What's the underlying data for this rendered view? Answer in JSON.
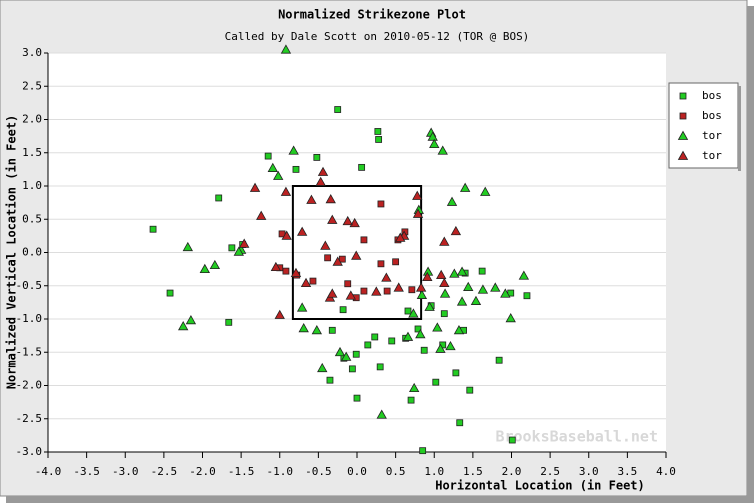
{
  "chart_data": {
    "type": "scatter",
    "title": "Normalized Strikezone Plot",
    "subtitle": "Called by Dale Scott on 2010-05-12 (TOR @ BOS)",
    "xlabel": "Horizontal Location (in Feet)",
    "ylabel": "Normalized Vertical Location (in Feet)",
    "watermark": "BrooksBaseball.net",
    "xlim": [
      -4,
      4
    ],
    "ylim": [
      -3,
      3
    ],
    "xticks": [
      {
        "value": -4,
        "label": "-4.0"
      },
      -3.5,
      {
        "value": -3,
        "label": "-3.0"
      },
      -2.5,
      {
        "value": -2,
        "label": "-2.0"
      },
      -1.5,
      {
        "value": -1,
        "label": "-1.0"
      },
      -0.5,
      {
        "value": 0,
        "label": "0.0"
      },
      0.5,
      {
        "value": 1,
        "label": "1.0"
      },
      1.5,
      {
        "value": 2,
        "label": "2.0"
      },
      2.5,
      {
        "value": 3,
        "label": "3.0"
      },
      3.5,
      {
        "value": 4,
        "label": "4.0"
      }
    ],
    "yticks": [
      {
        "value": 3,
        "label": "3.0"
      },
      2.5,
      {
        "value": 2,
        "label": "2.0"
      },
      1.5,
      {
        "value": 1,
        "label": "1.0"
      },
      0.5,
      {
        "value": 0,
        "label": "0.0"
      },
      -0.5,
      {
        "value": -1,
        "label": "-1.0"
      },
      -1.5,
      {
        "value": -2,
        "label": "-2.0"
      },
      -2.5,
      {
        "value": -3,
        "label": "-3.0"
      }
    ],
    "grid": "y",
    "legend": "right",
    "strike_zone": {
      "left": -0.83,
      "right": 0.83,
      "bottom": -1,
      "top": 1
    },
    "series": [
      {
        "name": "bos",
        "color": "#22cc22",
        "marker": "square",
        "x": [
          -0.25,
          0.27,
          0.28,
          -1.15,
          -0.52,
          0.06,
          -0.79,
          -1.79,
          -2.64,
          -1.62,
          -1.48,
          1.62,
          1.4,
          -2.42,
          -1.66,
          2.2,
          1.99,
          0.96,
          0.66,
          1.13,
          -0.18,
          0.79,
          1.38,
          -0.32,
          0.23,
          0.45,
          0.14,
          0.63,
          1.11,
          -0.01,
          -0.17,
          0.87,
          1.84,
          -0.35,
          -0.06,
          0.3,
          1.28,
          1.02,
          1.46,
          0.0,
          0.7,
          1.33,
          2.01,
          0.85
        ],
        "values": [
          2.15,
          1.82,
          1.7,
          1.45,
          1.43,
          1.28,
          1.25,
          0.82,
          0.35,
          0.07,
          0.12,
          -0.28,
          -0.31,
          -0.61,
          -1.05,
          -0.65,
          -0.61,
          -0.8,
          -0.88,
          -0.92,
          -0.86,
          -1.15,
          -1.17,
          -1.17,
          -1.27,
          -1.33,
          -1.39,
          -1.29,
          -1.39,
          -1.53,
          -1.59,
          -1.47,
          -1.62,
          -1.92,
          -1.75,
          -1.72,
          -1.81,
          -1.95,
          -2.07,
          -2.19,
          -2.22,
          -2.56,
          -2.82,
          -2.98
        ]
      },
      {
        "name": "bos",
        "color": "#bb2222",
        "marker": "square",
        "x": [
          0.31,
          0.53,
          0.62,
          0.09,
          -0.97,
          -0.38,
          -0.19,
          0.5,
          0.31,
          -0.92,
          -0.78,
          -1.0,
          -0.12,
          0.39,
          0.09,
          -0.01,
          0.71,
          -0.57
        ],
        "values": [
          0.73,
          0.19,
          0.31,
          0.19,
          0.28,
          -0.08,
          -0.1,
          -0.14,
          -0.17,
          -0.28,
          -0.34,
          -0.23,
          -0.47,
          -0.58,
          -0.58,
          -0.68,
          -0.56,
          -0.43
        ]
      },
      {
        "name": "tor",
        "color": "#22cc22",
        "marker": "triangle",
        "x": [
          -0.92,
          0.96,
          0.98,
          1.0,
          1.11,
          -0.82,
          -1.09,
          -1.02,
          1.4,
          1.66,
          1.23,
          -2.19,
          -1.84,
          -1.97,
          -1.5,
          -1.53,
          0.8,
          0.92,
          1.26,
          1.36,
          2.16,
          1.44,
          1.63,
          1.79,
          1.92,
          1.14,
          0.84,
          1.36,
          1.54,
          0.94,
          -0.71,
          0.73,
          0.66,
          -2.15,
          -2.25,
          -0.69,
          -0.52,
          0.82,
          1.32,
          1.99,
          1.04,
          1.21,
          1.08,
          -0.22,
          -0.14,
          -0.45,
          0.74,
          0.32
        ],
        "values": [
          3.05,
          1.8,
          1.74,
          1.63,
          1.53,
          1.53,
          1.27,
          1.15,
          0.97,
          0.91,
          0.76,
          0.08,
          -0.19,
          -0.25,
          0.04,
          0.01,
          0.64,
          -0.29,
          -0.32,
          -0.29,
          -0.35,
          -0.52,
          -0.56,
          -0.53,
          -0.62,
          -0.62,
          -0.64,
          -0.74,
          -0.73,
          -0.82,
          -0.83,
          -0.92,
          -1.27,
          -1.02,
          -1.11,
          -1.14,
          -1.17,
          -1.23,
          -1.17,
          -0.99,
          -1.13,
          -1.41,
          -1.45,
          -1.5,
          -1.57,
          -1.74,
          -2.04,
          -2.44
        ]
      },
      {
        "name": "tor",
        "color": "#bb2222",
        "marker": "triangle",
        "x": [
          -0.44,
          -0.47,
          -1.32,
          -0.92,
          -0.34,
          -0.59,
          0.78,
          0.79,
          -1.24,
          -0.32,
          -0.03,
          -0.12,
          1.28,
          -0.71,
          -0.91,
          -1.46,
          0.61,
          0.56,
          1.13,
          -0.41,
          -1.05,
          -0.79,
          -0.01,
          -0.25,
          0.38,
          0.91,
          1.09,
          1.13,
          -0.66,
          0.25,
          -0.08,
          -0.35,
          -0.32,
          0.54,
          0.83,
          -1.0
        ],
        "values": [
          1.21,
          1.06,
          0.97,
          0.91,
          0.8,
          0.79,
          0.85,
          0.58,
          0.55,
          0.49,
          0.44,
          0.47,
          0.32,
          0.31,
          0.25,
          0.13,
          0.25,
          0.22,
          0.16,
          0.1,
          -0.22,
          -0.31,
          -0.05,
          -0.14,
          -0.38,
          -0.37,
          -0.34,
          -0.46,
          -0.46,
          -0.59,
          -0.65,
          -0.68,
          -0.62,
          -0.53,
          -0.53,
          -0.94
        ]
      }
    ]
  }
}
